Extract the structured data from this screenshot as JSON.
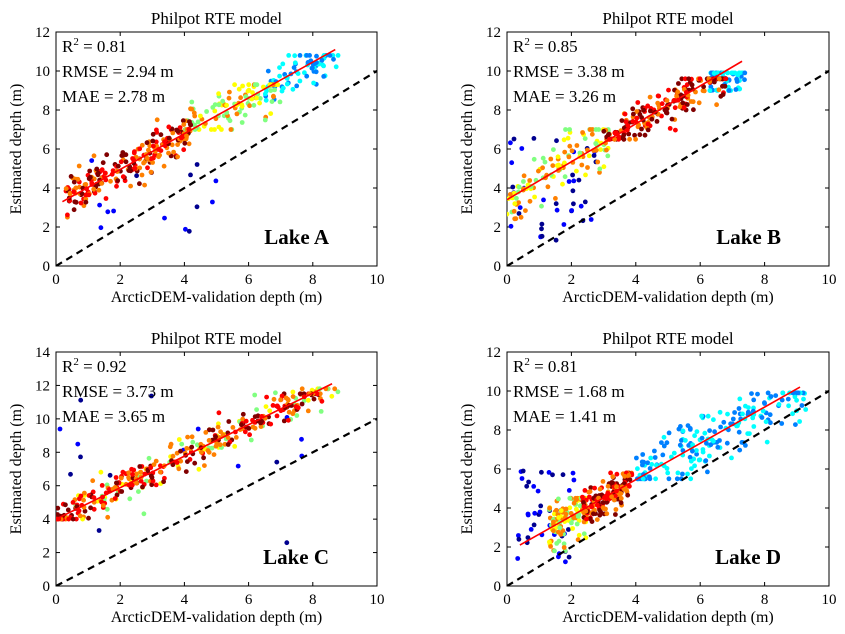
{
  "chart_data": [
    {
      "panel": "Lake A",
      "type": "scatter",
      "title": "Philpot RTE model",
      "xlabel": "ArcticDEM-validation depth (m)",
      "ylabel": "Estimated depth (m)",
      "xlim": [
        0,
        10
      ],
      "ylim": [
        0,
        12
      ],
      "xticks": [
        "0",
        "2",
        "4",
        "6",
        "8",
        "10"
      ],
      "yticks": [
        "0",
        "2",
        "4",
        "6",
        "8",
        "10",
        "12"
      ],
      "stats": {
        "r2_prefix": "R",
        "r2_sup": "2",
        "r2_value": " = 0.81",
        "rmse": "RMSE = 2.94 m",
        "mae": "MAE = 2.78 m"
      },
      "lake_label": "Lake A",
      "fit_line": [
        [
          0.2,
          3.3
        ],
        [
          8.7,
          11.1
        ]
      ],
      "identity_line": [
        [
          0,
          0
        ],
        [
          10,
          10
        ]
      ],
      "point_clusters": [
        {
          "density": "high",
          "count": 220,
          "x": [
            0.3,
            4.2
          ],
          "y": [
            2.5,
            7.5
          ],
          "along_fit": true
        },
        {
          "density": "medium",
          "count": 110,
          "x": [
            4.0,
            7.0
          ],
          "y": [
            7.0,
            9.3
          ],
          "along_fit": true
        },
        {
          "density": "low",
          "count": 70,
          "x": [
            6.5,
            8.8
          ],
          "y": [
            8.5,
            10.8
          ],
          "along_fit": true
        },
        {
          "density": "outlier",
          "count": 14,
          "x": [
            0.3,
            5.0
          ],
          "y": [
            0.9,
            6.0
          ],
          "along_fit": false
        }
      ]
    },
    {
      "panel": "Lake B",
      "type": "scatter",
      "title": "Philpot RTE model",
      "xlabel": "ArcticDEM-validation depth (m)",
      "ylabel": "Estimated depth (m)",
      "xlim": [
        0,
        10
      ],
      "ylim": [
        0,
        12
      ],
      "xticks": [
        "0",
        "2",
        "4",
        "6",
        "8",
        "10"
      ],
      "yticks": [
        "0",
        "2",
        "4",
        "6",
        "8",
        "10",
        "12"
      ],
      "stats": {
        "r2_prefix": "R",
        "r2_sup": "2",
        "r2_value": " = 0.85",
        "rmse": "RMSE = 3.38 m",
        "mae": "MAE = 3.26 m"
      },
      "lake_label": "Lake B",
      "fit_line": [
        [
          0,
          3.4
        ],
        [
          7.3,
          10.5
        ]
      ],
      "identity_line": [
        [
          0,
          0
        ],
        [
          10,
          10
        ]
      ],
      "point_clusters": [
        {
          "density": "high",
          "count": 200,
          "x": [
            3.0,
            6.8
          ],
          "y": [
            6.5,
            9.6
          ],
          "along_fit": true
        },
        {
          "density": "medium",
          "count": 120,
          "x": [
            0.0,
            3.2
          ],
          "y": [
            2.0,
            7.0
          ],
          "along_fit": true
        },
        {
          "density": "low",
          "count": 60,
          "x": [
            6.3,
            7.4
          ],
          "y": [
            9.0,
            9.9
          ],
          "along_fit": true
        },
        {
          "density": "outlier",
          "count": 40,
          "x": [
            0.1,
            2.8
          ],
          "y": [
            1.3,
            6.8
          ],
          "along_fit": false
        }
      ]
    },
    {
      "panel": "Lake C",
      "type": "scatter",
      "title": "Philpot RTE model",
      "xlabel": "ArcticDEM-validation depth (m)",
      "ylabel": "Estimated depth (m)",
      "xlim": [
        0,
        10
      ],
      "ylim": [
        0,
        14
      ],
      "xticks": [
        "0",
        "2",
        "4",
        "6",
        "8",
        "10"
      ],
      "yticks": [
        "0",
        "2",
        "4",
        "6",
        "8",
        "10",
        "12",
        "14"
      ],
      "stats": {
        "r2_prefix": "R",
        "r2_sup": "2",
        "r2_value": " = 0.92",
        "rmse": "RMSE = 3.73 m",
        "mae": "MAE = 3.65 m"
      },
      "lake_label": "Lake C",
      "fit_line": [
        [
          0,
          4.0
        ],
        [
          8.6,
          12.1
        ]
      ],
      "identity_line": [
        [
          0,
          0
        ],
        [
          10,
          10
        ]
      ],
      "point_clusters": [
        {
          "density": "high",
          "count": 260,
          "x": [
            0.0,
            8.3
          ],
          "y": [
            4.0,
            11.5
          ],
          "along_fit": true
        },
        {
          "density": "medium",
          "count": 100,
          "x": [
            0.5,
            8.8
          ],
          "y": [
            4.0,
            11.8
          ],
          "along_fit": true
        },
        {
          "density": "outlier",
          "count": 16,
          "x": [
            0.1,
            8.3
          ],
          "y": [
            2.0,
            13.0
          ],
          "along_fit": false
        }
      ]
    },
    {
      "panel": "Lake D",
      "type": "scatter",
      "title": "Philpot RTE model",
      "xlabel": "ArcticDEM-validation depth (m)",
      "ylabel": "Estimated depth (m)",
      "xlim": [
        0,
        10
      ],
      "ylim": [
        0,
        12
      ],
      "xticks": [
        "0",
        "2",
        "4",
        "6",
        "8",
        "10"
      ],
      "yticks": [
        "0",
        "2",
        "4",
        "6",
        "8",
        "10",
        "12"
      ],
      "stats": {
        "r2_prefix": "R",
        "r2_sup": "2",
        "r2_value": " = 0.81",
        "rmse": "RMSE = 1.68 m",
        "mae": "MAE = 1.41 m"
      },
      "lake_label": "Lake D",
      "fit_line": [
        [
          0.4,
          2.1
        ],
        [
          9.1,
          10.2
        ]
      ],
      "identity_line": [
        [
          0,
          0
        ],
        [
          10,
          10
        ]
      ],
      "point_clusters": [
        {
          "density": "high",
          "count": 150,
          "x": [
            2.3,
            3.9
          ],
          "y": [
            3.2,
            5.8
          ],
          "along_fit": true
        },
        {
          "density": "medium",
          "count": 120,
          "x": [
            1.3,
            2.5
          ],
          "y": [
            1.8,
            4.5
          ],
          "along_fit": true
        },
        {
          "density": "low",
          "count": 200,
          "x": [
            4.0,
            9.3
          ],
          "y": [
            5.5,
            9.9
          ],
          "along_fit": true
        },
        {
          "density": "outlier",
          "count": 40,
          "x": [
            0.3,
            2.1
          ],
          "y": [
            1.2,
            6.0
          ],
          "along_fit": false
        }
      ]
    }
  ],
  "colors": {
    "fit_line": "#ff0000",
    "identity_line": "#000000",
    "density_scale": [
      "#00008f",
      "#0000ff",
      "#0080ff",
      "#00ffff",
      "#80ff80",
      "#ffff00",
      "#ff8000",
      "#ff0000",
      "#800000"
    ]
  }
}
